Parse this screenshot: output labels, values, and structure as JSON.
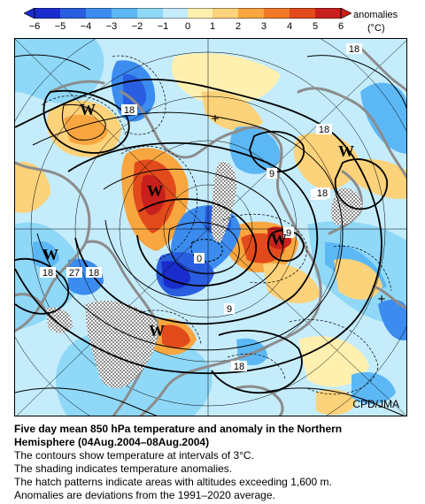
{
  "legend": {
    "title": "anomalies",
    "unit": "(°C)",
    "ticks": [
      "−6",
      "−5",
      "−4",
      "−3",
      "−2",
      "−1",
      "0",
      "1",
      "2",
      "3",
      "4",
      "5",
      "6"
    ],
    "tick_values": [
      -6,
      -5,
      -4,
      -3,
      -2,
      -1,
      0,
      1,
      2,
      3,
      4,
      5,
      6
    ],
    "colors": [
      "#1a2ccc",
      "#2a5ee0",
      "#3c8cf0",
      "#5cb8f5",
      "#8fd8f8",
      "#c5ecfb",
      "#ffffff",
      "#fff0b0",
      "#fcd27a",
      "#f8a640",
      "#f07a28",
      "#e24a1c",
      "#c8201c"
    ]
  },
  "map": {
    "credit": "CPD/JMA",
    "contour_labels": [
      "18",
      "18",
      "18",
      "9",
      "9",
      "18",
      "0",
      "18",
      "27",
      "18",
      "9",
      "18",
      "18"
    ],
    "high_markers": [
      "W",
      "W",
      "W",
      "W",
      "W",
      "W"
    ],
    "low_markers": [
      "+",
      "+"
    ]
  },
  "caption": {
    "title_line1": "Five day mean 850 hPa temperature and anomaly in the Northern",
    "title_line2": "Hemisphere (04Aug.2004–08Aug.2004)",
    "line1": "The contours show temperature at intervals of 3°C.",
    "line2": "The shading indicates temperature anomalies.",
    "line3": "The hatch patterns indicate areas with altitudes exceeding 1,600 m.",
    "line4": "Anomalies are deviations from the 1991–2020 average."
  }
}
